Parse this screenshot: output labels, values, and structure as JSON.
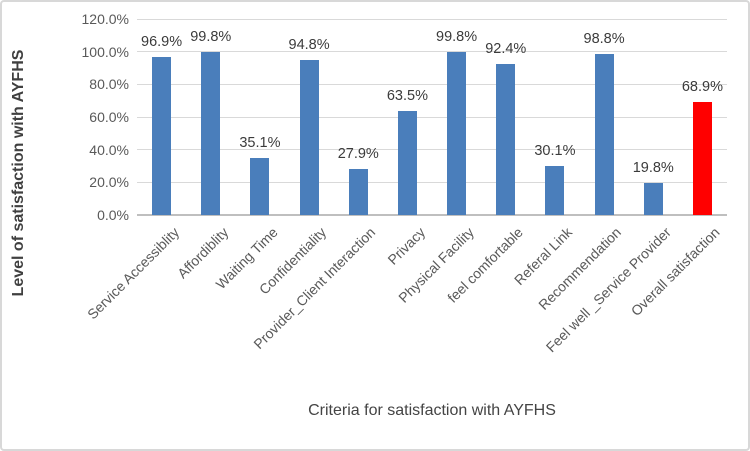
{
  "chart_data": {
    "type": "bar",
    "title": "",
    "xlabel": "Criteria for satisfaction with AYFHS",
    "ylabel": "Level of satisfaction with AYFHS",
    "categories": [
      "Service Accessiblity",
      "Affordiblity",
      "Waiting Time",
      "Confidentiality",
      "Provider_Client Interaction",
      "Privacy",
      "Physical Facility",
      "feel comfortable",
      "Referal Link",
      "Recommendation",
      "Feel well _Service Provider",
      "Overall satisfaction"
    ],
    "values": [
      96.9,
      99.8,
      35.1,
      94.8,
      27.9,
      63.5,
      99.8,
      92.4,
      30.1,
      98.8,
      19.8,
      68.9
    ],
    "value_labels": [
      "96.9%",
      "99.8%",
      "35.1%",
      "94.8%",
      "27.9%",
      "63.5%",
      "99.8%",
      "92.4%",
      "30.1%",
      "98.8%",
      "19.8%",
      "68.9%"
    ],
    "ylim": [
      0,
      120
    ],
    "ytick_step": 20,
    "ytick_labels": [
      "0.0%",
      "20.0%",
      "40.0%",
      "60.0%",
      "80.0%",
      "100.0%",
      "120.0%"
    ],
    "grid": true,
    "legend": "none",
    "bar_color": "#4a7ebb",
    "highlight_color": "#ff0000",
    "highlight_index": 11,
    "gridline_color": "#d9d9d9",
    "axis_line_color": "#bfbfbf"
  }
}
